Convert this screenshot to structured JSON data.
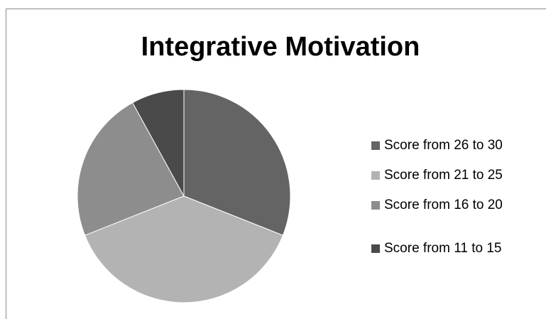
{
  "chart_data": {
    "type": "pie",
    "title": "Integrative Motivation",
    "categories": [
      "Score from 26 to 30",
      "Score from 21 to 25",
      "Score from 16 to 20",
      "Score from 11 to 15"
    ],
    "values": [
      31,
      38,
      23,
      8
    ],
    "colors": [
      "#646464",
      "#b3b3b3",
      "#8d8d8d",
      "#4a4a4a"
    ],
    "legend": "right"
  }
}
